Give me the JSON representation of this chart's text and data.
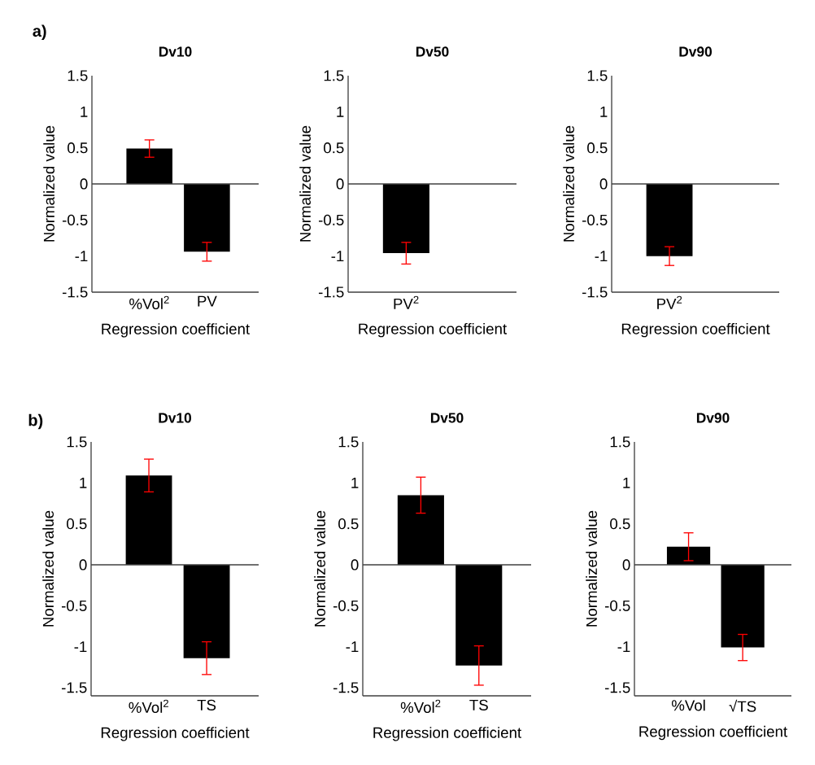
{
  "chart_data": [
    {
      "type": "bar",
      "title": "Dv10",
      "xlabel": "Regression coefficient",
      "ylabel": "Normalized value",
      "categories": [
        "%Vol$^{2}$",
        "PV"
      ],
      "values": [
        0.49,
        -0.94
      ],
      "errors": [
        0.12,
        0.13
      ],
      "color": "#000000",
      "ylim": [
        -1.5,
        1.5
      ],
      "yticks": [
        -1.5,
        -1,
        -0.5,
        0,
        0.5,
        1,
        1.5
      ],
      "annotations": [
        "**a)**"
      ]
    },
    {
      "type": "bar",
      "title": "Dv50",
      "xlabel": "Regression coefficient",
      "ylabel": "Normalized value",
      "categories": [
        "PV$^{2}$"
      ],
      "values": [
        -0.96
      ],
      "errors": [
        0.15
      ],
      "color": "#000000",
      "ylim": [
        -1.5,
        1.5
      ],
      "yticks": [
        -1.5,
        -1,
        -0.5,
        0,
        0.5,
        1,
        1.5
      ]
    },
    {
      "type": "bar",
      "title": "Dv90",
      "xlabel": "Regression coefficient",
      "ylabel": "Normalized value",
      "categories": [
        "PV$^{2}$"
      ],
      "values": [
        -1.0
      ],
      "errors": [
        0.13
      ],
      "color": "#000000",
      "ylim": [
        -1.5,
        1.5
      ],
      "yticks": [
        -1.5,
        -1,
        -0.5,
        0,
        0.5,
        1,
        1.5
      ]
    },
    {
      "type": "bar",
      "title": "Dv10",
      "xlabel": "Regression coefficient",
      "ylabel": "Normalized value",
      "categories": [
        "%Vol$^{2}$",
        "TS"
      ],
      "values": [
        1.09,
        -1.14
      ],
      "errors": [
        0.2,
        0.2
      ],
      "color": "#000000",
      "ylim": [
        -1.6,
        1.5
      ],
      "yticks": [
        -1.5,
        -1,
        -0.5,
        0,
        0.5,
        1,
        1.5
      ],
      "annotations": [
        "**b)**"
      ]
    },
    {
      "type": "bar",
      "title": "Dv50",
      "xlabel": "Regression coefficient",
      "ylabel": "Normalized value",
      "categories": [
        "%Vol$^{2}$",
        "TS"
      ],
      "values": [
        0.85,
        -1.23
      ],
      "errors": [
        0.22,
        0.24
      ],
      "color": "#000000",
      "ylim": [
        -1.6,
        1.5
      ],
      "yticks": [
        -1.5,
        -1,
        -0.5,
        0,
        0.5,
        1,
        1.5
      ]
    },
    {
      "type": "bar",
      "title": "Dv90",
      "xlabel": "Regression coefficient",
      "ylabel": "Normalized value",
      "categories": [
        "%Vol",
        "√TS"
      ],
      "values": [
        0.22,
        -1.01
      ],
      "errors": [
        0.17,
        0.16
      ],
      "color": "#000000",
      "ylim": [
        -1.6,
        1.5
      ],
      "yticks": [
        -1.5,
        -1,
        -0.5,
        0,
        0.5,
        1,
        1.5
      ]
    }
  ]
}
